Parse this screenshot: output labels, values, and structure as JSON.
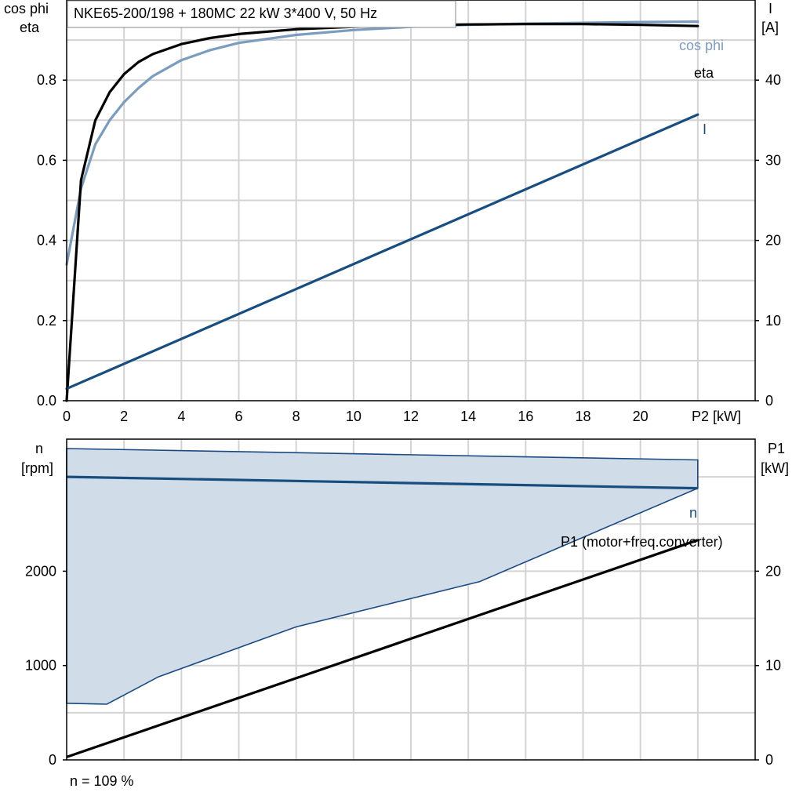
{
  "title_box": "NKE65-200/198 + 180MC   22 kW   3*400 V, 50 Hz",
  "footer_note": "n = 109 %",
  "colors": {
    "eta": "#000000",
    "cos_phi": "#7a9cbf",
    "current": "#184e7f",
    "speed": "#184e7f",
    "envelope_fill": "#d0dce8",
    "envelope_edge": "#1b4a82",
    "p1": "#000000",
    "grid": "#d3d3d3"
  },
  "chart_data": [
    {
      "type": "line",
      "panel": "top",
      "left_axis_label": [
        "cos phi",
        "eta"
      ],
      "right_axis_label": [
        "I",
        "[A]"
      ],
      "x_axis_label": "P2 [kW]",
      "xlim": [
        0,
        24
      ],
      "ylim_left": [
        0,
        1.0
      ],
      "ylim_right": [
        0,
        50
      ],
      "x_ticks": [
        "0",
        "2",
        "4",
        "6",
        "8",
        "10",
        "12",
        "14",
        "16",
        "18",
        "20"
      ],
      "y_left_ticks": [
        "0.0",
        "0.2",
        "0.4",
        "0.6",
        "0.8"
      ],
      "y_right_ticks": [
        "0",
        "10",
        "20",
        "30",
        "40"
      ],
      "grid": true,
      "series": [
        {
          "name": "eta",
          "axis": "left",
          "x": [
            0,
            0.5,
            1,
            1.5,
            2,
            2.5,
            3,
            4,
            5,
            6,
            8,
            10,
            12,
            14,
            16,
            18,
            20,
            22
          ],
          "y": [
            0.0,
            0.55,
            0.7,
            0.77,
            0.815,
            0.845,
            0.865,
            0.89,
            0.905,
            0.915,
            0.927,
            0.933,
            0.937,
            0.939,
            0.94,
            0.94,
            0.938,
            0.935
          ]
        },
        {
          "name": "cos phi",
          "axis": "left",
          "x": [
            0,
            0.5,
            1,
            1.5,
            2,
            2.5,
            3,
            4,
            5,
            6,
            8,
            10,
            12,
            14,
            16,
            18,
            20,
            22
          ],
          "y": [
            0.34,
            0.53,
            0.64,
            0.7,
            0.745,
            0.78,
            0.81,
            0.85,
            0.875,
            0.893,
            0.913,
            0.925,
            0.933,
            0.938,
            0.941,
            0.943,
            0.945,
            0.946
          ]
        },
        {
          "name": "I",
          "axis": "right",
          "x": [
            0,
            22
          ],
          "y": [
            1.5,
            35.7
          ]
        }
      ]
    },
    {
      "type": "area",
      "panel": "bottom",
      "left_axis_label": [
        "n",
        "[rpm]"
      ],
      "right_axis_label": [
        "P1",
        "[kW]"
      ],
      "xlim": [
        0,
        24
      ],
      "ylim_left": [
        0,
        3400
      ],
      "ylim_right": [
        0,
        34
      ],
      "y_left_ticks": [
        "0",
        "1000",
        "2000"
      ],
      "y_right_ticks": [
        "0",
        "10",
        "20"
      ],
      "grid": true,
      "series": [
        {
          "name": "n",
          "axis": "left",
          "x": [
            0,
            22
          ],
          "y": [
            3000,
            2880
          ]
        },
        {
          "name": "P1 (motor+freq.converter)",
          "axis": "right",
          "x": [
            0,
            22
          ],
          "y": [
            0.3,
            23.3
          ]
        }
      ],
      "envelope": {
        "upper": {
          "x": [
            0,
            22
          ],
          "y": [
            3300,
            3180
          ]
        },
        "lower": {
          "x": [
            0,
            1.4,
            3.2,
            8,
            14.4,
            22
          ],
          "y": [
            600,
            590,
            880,
            1410,
            1890,
            2880
          ]
        }
      }
    }
  ]
}
